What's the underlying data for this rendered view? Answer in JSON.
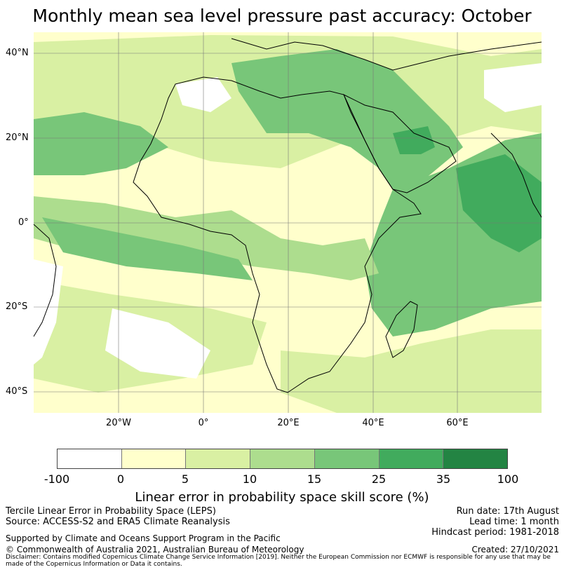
{
  "title": "Monthly mean sea level pressure past accuracy: October",
  "map": {
    "lat_labels": [
      "40°N",
      "20°N",
      "0°",
      "20°S",
      "40°S"
    ],
    "lon_labels": [
      "20°W",
      "0°",
      "20°E",
      "40°E",
      "60°E"
    ],
    "colors": {
      "c0": "#ffffff",
      "c1": "#ffffcc",
      "c2": "#d9f0a3",
      "c3": "#addd8e",
      "c4": "#78c679",
      "c5": "#41ab5d",
      "c6": "#238443",
      "coast": "#000000",
      "grid": "#777777"
    }
  },
  "colorbar": {
    "ticks": [
      "-100",
      "0",
      "5",
      "10",
      "15",
      "25",
      "35",
      "100"
    ],
    "label": "Linear error in probability space skill score (%)"
  },
  "footer": {
    "left": [
      "Tercile Linear Error in Probability Space (LEPS)",
      "Source: ACCESS-S2 and ERA5 Climate Reanalysis"
    ],
    "right": [
      "Run date: 17th August",
      "Lead time: 1 month",
      "Hindcast period: 1981-2018"
    ],
    "support": "Supported by Climate and Oceans Support Program in the Pacific",
    "copyright": "© Commonwealth of Australia 2021, Australian Bureau of Meteorology",
    "created": "Created: 27/10/2021",
    "disclaimer": "Disclaimer: Contains modified Copernicus Climate Change Service Information [2019]. Neither the European Commission nor ECMWF is responsible for any use that may be made of the Copernicus Information or Data it contains."
  }
}
